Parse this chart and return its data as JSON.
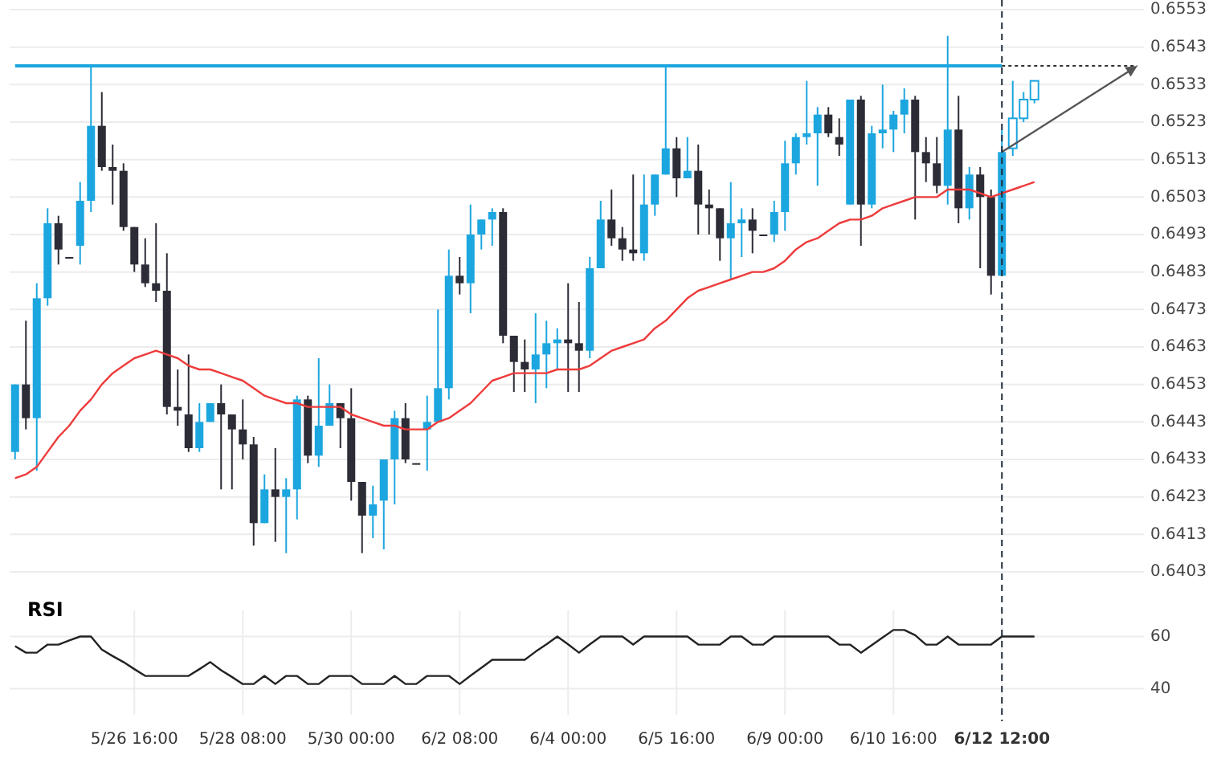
{
  "chart_data": [
    {
      "type": "candlestick",
      "categories": [
        null,
        null,
        null,
        null,
        null,
        null,
        null,
        null,
        null,
        null,
        null,
        null,
        null,
        null,
        null,
        null,
        null,
        null,
        null,
        null,
        null,
        null,
        null,
        null,
        null,
        null,
        null,
        null,
        null,
        null,
        null,
        null,
        null,
        null,
        null,
        null,
        null,
        null,
        null,
        null,
        null,
        null,
        null,
        null,
        null,
        null,
        null,
        null,
        null,
        null,
        null,
        null,
        null,
        null,
        null,
        null,
        null,
        null,
        null,
        null,
        null,
        null,
        null,
        null,
        null,
        null,
        null,
        null,
        null,
        null,
        null,
        null,
        null,
        null,
        null,
        null,
        null,
        null,
        null,
        null,
        null,
        null,
        null,
        null,
        null,
        null,
        null,
        null,
        null,
        null,
        null,
        null,
        null,
        null,
        null
      ],
      "ohlc": [
        [
          0.6435,
          0.6453,
          0.6433,
          0.6453
        ],
        [
          0.6453,
          0.647,
          0.6441,
          0.6444
        ],
        [
          0.6444,
          0.648,
          0.643,
          0.6476
        ],
        [
          0.6476,
          0.65,
          0.6474,
          0.6496
        ],
        [
          0.6496,
          0.6498,
          0.6485,
          0.6489
        ],
        [
          0.6487,
          0.6487,
          0.6487,
          0.6487
        ],
        [
          0.649,
          0.6507,
          0.6485,
          0.6502
        ],
        [
          0.6502,
          0.6538,
          0.6499,
          0.6522
        ],
        [
          0.6522,
          0.6531,
          0.651,
          0.6511
        ],
        [
          0.6511,
          0.6517,
          0.6501,
          0.651
        ],
        [
          0.651,
          0.6512,
          0.6494,
          0.6495
        ],
        [
          0.6495,
          0.6495,
          0.6483,
          0.6485
        ],
        [
          0.6485,
          0.6492,
          0.6479,
          0.648
        ],
        [
          0.648,
          0.6496,
          0.6475,
          0.6478
        ],
        [
          0.6478,
          0.6488,
          0.6445,
          0.6447
        ],
        [
          0.6447,
          0.6457,
          0.6442,
          0.6446
        ],
        [
          0.6445,
          0.6461,
          0.6435,
          0.6436
        ],
        [
          0.6436,
          0.6448,
          0.6435,
          0.6443
        ],
        [
          0.6443,
          0.6448,
          0.6443,
          0.6448
        ],
        [
          0.6448,
          0.6453,
          0.6425,
          0.6445
        ],
        [
          0.6445,
          0.6445,
          0.6425,
          0.6441
        ],
        [
          0.6441,
          0.6449,
          0.6433,
          0.6437
        ],
        [
          0.6437,
          0.6439,
          0.641,
          0.6416
        ],
        [
          0.6416,
          0.6429,
          0.6416,
          0.6425
        ],
        [
          0.6425,
          0.6436,
          0.6411,
          0.6423
        ],
        [
          0.6423,
          0.6428,
          0.6408,
          0.6425
        ],
        [
          0.6425,
          0.645,
          0.6417,
          0.6449
        ],
        [
          0.6449,
          0.645,
          0.6432,
          0.6434
        ],
        [
          0.6434,
          0.646,
          0.6431,
          0.6442
        ],
        [
          0.6442,
          0.6453,
          0.6442,
          0.6448
        ],
        [
          0.6448,
          0.6448,
          0.6436,
          0.6444
        ],
        [
          0.6444,
          0.6452,
          0.6422,
          0.6427
        ],
        [
          0.6427,
          0.6427,
          0.6408,
          0.6418
        ],
        [
          0.6418,
          0.6426,
          0.6412,
          0.6421
        ],
        [
          0.6422,
          0.6433,
          0.6409,
          0.6433
        ],
        [
          0.6433,
          0.6446,
          0.6421,
          0.6444
        ],
        [
          0.6444,
          0.6448,
          0.6432,
          0.6433
        ],
        [
          0.6432,
          0.6432,
          0.6432,
          0.6432
        ],
        [
          0.6441,
          0.645,
          0.643,
          0.6443
        ],
        [
          0.6443,
          0.6473,
          0.6443,
          0.6452
        ],
        [
          0.6452,
          0.6489,
          0.6449,
          0.6482
        ],
        [
          0.6482,
          0.6487,
          0.6477,
          0.648
        ],
        [
          0.648,
          0.6501,
          0.6472,
          0.6493
        ],
        [
          0.6493,
          0.6497,
          0.6489,
          0.6497
        ],
        [
          0.6497,
          0.65,
          0.649,
          0.6499
        ],
        [
          0.6499,
          0.65,
          0.6464,
          0.6466
        ],
        [
          0.6466,
          0.6466,
          0.6451,
          0.6459
        ],
        [
          0.6459,
          0.6465,
          0.6451,
          0.6457
        ],
        [
          0.6457,
          0.6472,
          0.6448,
          0.6461
        ],
        [
          0.6461,
          0.647,
          0.6452,
          0.6464
        ],
        [
          0.6464,
          0.6468,
          0.6457,
          0.6465
        ],
        [
          0.6465,
          0.648,
          0.6451,
          0.6464
        ],
        [
          0.6464,
          0.6475,
          0.6451,
          0.6462
        ],
        [
          0.6462,
          0.6487,
          0.646,
          0.6484
        ],
        [
          0.6484,
          0.6502,
          0.6484,
          0.6497
        ],
        [
          0.6497,
          0.6505,
          0.649,
          0.6492
        ],
        [
          0.6492,
          0.6495,
          0.6486,
          0.6489
        ],
        [
          0.6489,
          0.6509,
          0.6486,
          0.6488
        ],
        [
          0.6488,
          0.6509,
          0.6486,
          0.6501
        ],
        [
          0.6501,
          0.6509,
          0.6498,
          0.6509
        ],
        [
          0.6509,
          0.6538,
          0.6509,
          0.6516
        ],
        [
          0.6516,
          0.6519,
          0.6503,
          0.6508
        ],
        [
          0.6508,
          0.6519,
          0.6508,
          0.651
        ],
        [
          0.651,
          0.6517,
          0.6493,
          0.6501
        ],
        [
          0.6501,
          0.6505,
          0.6493,
          0.65
        ],
        [
          0.65,
          0.65,
          0.6486,
          0.6492
        ],
        [
          0.6492,
          0.6507,
          0.6481,
          0.6496
        ],
        [
          0.6496,
          0.65,
          0.6487,
          0.6497
        ],
        [
          0.6497,
          0.65,
          0.6488,
          0.6494
        ],
        [
          0.6493,
          0.6493,
          0.6493,
          0.6493
        ],
        [
          0.6493,
          0.6502,
          0.6491,
          0.6499
        ],
        [
          0.6499,
          0.6518,
          0.6494,
          0.6512
        ],
        [
          0.6512,
          0.652,
          0.6509,
          0.6519
        ],
        [
          0.6519,
          0.6534,
          0.6517,
          0.652
        ],
        [
          0.652,
          0.6527,
          0.6506,
          0.6525
        ],
        [
          0.6525,
          0.6527,
          0.6519,
          0.652
        ],
        [
          0.6519,
          0.6524,
          0.6514,
          0.6517
        ],
        [
          0.6501,
          0.6529,
          0.6501,
          0.6529
        ],
        [
          0.6529,
          0.653,
          0.649,
          0.6501
        ],
        [
          0.6501,
          0.6522,
          0.65,
          0.652
        ],
        [
          0.652,
          0.6533,
          0.6516,
          0.6521
        ],
        [
          0.6521,
          0.6526,
          0.6515,
          0.6525
        ],
        [
          0.6525,
          0.6532,
          0.652,
          0.6529
        ],
        [
          0.6529,
          0.653,
          0.6497,
          0.6515
        ],
        [
          0.6515,
          0.6519,
          0.6507,
          0.6512
        ],
        [
          0.6512,
          0.6519,
          0.6504,
          0.6506
        ],
        [
          0.6506,
          0.6546,
          0.6501,
          0.6521
        ],
        [
          0.6521,
          0.653,
          0.6496,
          0.65
        ],
        [
          0.65,
          0.6511,
          0.6497,
          0.6509
        ],
        [
          0.6509,
          0.6511,
          0.6484,
          0.6503
        ],
        [
          0.6503,
          0.6505,
          0.6477,
          0.6482
        ],
        [
          0.6482,
          0.6521,
          0.6482,
          0.6515
        ],
        [
          0.6516,
          0.6534,
          0.6514,
          0.6524
        ],
        [
          0.6524,
          0.6531,
          0.6523,
          0.6529
        ],
        [
          0.6529,
          0.6534,
          0.6528,
          0.6534
        ]
      ],
      "colors": [
        "#1ca6df",
        "#2b2c36",
        "#1ca6df",
        "#1ca6df",
        "#2b2c36",
        "#2b2c36",
        "#1ca6df",
        "#1ca6df",
        "#2b2c36",
        "#2b2c36",
        "#2b2c36",
        "#2b2c36",
        "#2b2c36",
        "#2b2c36",
        "#2b2c36",
        "#2b2c36",
        "#2b2c36",
        "#1ca6df",
        "#1ca6df",
        "#2b2c36",
        "#2b2c36",
        "#2b2c36",
        "#2b2c36",
        "#1ca6df",
        "#2b2c36",
        "#1ca6df",
        "#1ca6df",
        "#2b2c36",
        "#1ca6df",
        "#1ca6df",
        "#2b2c36",
        "#2b2c36",
        "#2b2c36",
        "#1ca6df",
        "#1ca6df",
        "#1ca6df",
        "#2b2c36",
        "#2b2c36",
        "#1ca6df",
        "#1ca6df",
        "#1ca6df",
        "#2b2c36",
        "#1ca6df",
        "#1ca6df",
        "#1ca6df",
        "#2b2c36",
        "#2b2c36",
        "#2b2c36",
        "#1ca6df",
        "#1ca6df",
        "#1ca6df",
        "#2b2c36",
        "#2b2c36",
        "#1ca6df",
        "#1ca6df",
        "#2b2c36",
        "#2b2c36",
        "#2b2c36",
        "#1ca6df",
        "#1ca6df",
        "#1ca6df",
        "#2b2c36",
        "#1ca6df",
        "#2b2c36",
        "#2b2c36",
        "#2b2c36",
        "#1ca6df",
        "#1ca6df",
        "#2b2c36",
        "#2b2c36",
        "#1ca6df",
        "#1ca6df",
        "#1ca6df",
        "#1ca6df",
        "#1ca6df",
        "#2b2c36",
        "#2b2c36",
        "#1ca6df",
        "#2b2c36",
        "#1ca6df",
        "#1ca6df",
        "#1ca6df",
        "#1ca6df",
        "#2b2c36",
        "#2b2c36",
        "#2b2c36",
        "#1ca6df",
        "#2b2c36",
        "#1ca6df",
        "#2b2c36",
        "#2b2c36",
        "#1ca6df",
        "#1ca6df",
        "#1ca6df",
        "#1ca6df"
      ],
      "series": [
        {
          "type": "line",
          "color": "#ee3b3b",
          "values": [
            0.6428,
            0.6429,
            0.6431,
            0.6435,
            0.6439,
            0.6442,
            0.6446,
            0.6449,
            0.6453,
            0.6456,
            0.6458,
            0.646,
            0.6461,
            0.6462,
            0.6461,
            0.646,
            0.6458,
            0.6457,
            0.6457,
            0.6456,
            0.6455,
            0.6454,
            0.6452,
            0.645,
            0.6449,
            0.6448,
            0.6448,
            0.6447,
            0.6447,
            0.6447,
            0.6447,
            0.6445,
            0.6444,
            0.6443,
            0.6442,
            0.6442,
            0.6441,
            0.6441,
            0.6441,
            0.6443,
            0.6444,
            0.6446,
            0.6448,
            0.6451,
            0.6454,
            0.6455,
            0.6456,
            0.6456,
            0.6456,
            0.6456,
            0.6457,
            0.6457,
            0.6457,
            0.6458,
            0.646,
            0.6462,
            0.6463,
            0.6464,
            0.6465,
            0.6468,
            0.647,
            0.6473,
            0.6476,
            0.6478,
            0.6479,
            0.648,
            0.6481,
            0.6482,
            0.6483,
            0.6483,
            0.6484,
            0.6486,
            0.6489,
            0.6491,
            0.6492,
            0.6494,
            0.6496,
            0.6497,
            0.6497,
            0.6498,
            0.65,
            0.6501,
            0.6502,
            0.6503,
            0.6503,
            0.6503,
            0.6505,
            0.6505,
            0.6505,
            0.6504,
            0.6503,
            0.6504,
            0.6505,
            0.6506,
            0.6507
          ]
        }
      ],
      "ylim": [
        0.6403,
        0.6553
      ],
      "yticks": [
        0.6403,
        0.6413,
        0.6423,
        0.6433,
        0.6443,
        0.6453,
        0.6463,
        0.6473,
        0.6483,
        0.6493,
        0.6503,
        0.6513,
        0.6523,
        0.6533,
        0.6543,
        0.6553
      ],
      "ref_lines": [
        {
          "axis": "y",
          "value": 0.6538,
          "color": "#1ca6df"
        }
      ],
      "grid": true,
      "tick_labels": "y"
    },
    {
      "type": "line",
      "title": "RSI",
      "categories": [
        null,
        null,
        null,
        null,
        null,
        null,
        null,
        null,
        null,
        null,
        null,
        "5/26 16:00",
        null,
        null,
        null,
        null,
        null,
        null,
        null,
        null,
        null,
        "5/28 08:00",
        null,
        null,
        null,
        null,
        null,
        null,
        null,
        null,
        null,
        "5/30 00:00",
        null,
        null,
        null,
        null,
        null,
        null,
        null,
        null,
        null,
        "6/2 08:00",
        null,
        null,
        null,
        null,
        null,
        null,
        null,
        null,
        null,
        "6/4 00:00",
        null,
        null,
        null,
        null,
        null,
        null,
        null,
        null,
        null,
        "6/5 16:00",
        null,
        null,
        null,
        null,
        null,
        null,
        null,
        null,
        null,
        "6/9 00:00",
        null,
        null,
        null,
        null,
        null,
        null,
        null,
        null,
        null,
        "6/10 16:00",
        null,
        null,
        null,
        null,
        null,
        null,
        null,
        null,
        null,
        "6/12 12:00",
        null,
        null,
        null
      ],
      "series": [
        {
          "color": "#222222",
          "values": [
            56.3,
            53.8,
            53.8,
            56.9,
            56.9,
            58.5,
            60,
            60,
            55,
            52.5,
            50.2,
            47.5,
            44.9,
            44.9,
            44.9,
            44.9,
            44.9,
            47.5,
            50.2,
            47.1,
            44.5,
            41.8,
            41.8,
            44.9,
            41.8,
            44.9,
            44.9,
            41.8,
            41.8,
            44.9,
            44.9,
            44.9,
            41.8,
            41.8,
            41.8,
            44.9,
            41.8,
            41.8,
            44.9,
            44.9,
            44.9,
            41.8,
            45,
            48,
            51.1,
            51.1,
            51.1,
            51.1,
            54.2,
            57,
            60,
            57,
            53.8,
            57,
            60,
            60,
            60,
            56.9,
            60,
            60,
            60,
            60,
            60,
            56.9,
            56.9,
            56.9,
            60,
            60,
            56.9,
            56.9,
            60,
            60,
            60,
            60,
            60,
            60,
            56.9,
            56.9,
            53.8,
            56.7,
            59.6,
            62.5,
            62.5,
            60.5,
            56.9,
            56.9,
            60,
            56.9,
            56.9,
            56.9,
            56.9,
            60,
            60,
            60,
            60
          ]
        }
      ],
      "ylim": [
        30,
        70
      ],
      "yticks": [
        40,
        60
      ],
      "ref_lines": [
        {
          "axis": "x",
          "value": "6/12 12:00",
          "line_style": "dashed",
          "color": "#1e2a3a"
        }
      ],
      "grid": true
    }
  ]
}
